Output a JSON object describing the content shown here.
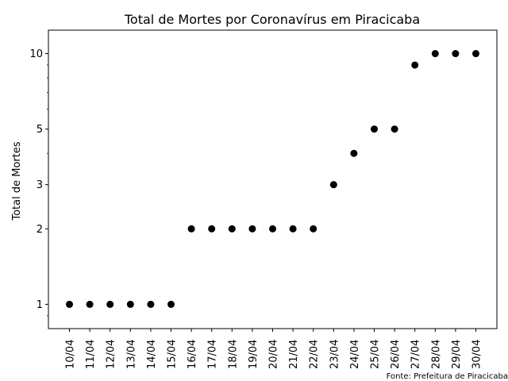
{
  "chart_data": {
    "type": "scatter",
    "title": "Total de Mortes por Coronavírus em Piracicaba",
    "xlabel": "",
    "ylabel": "Total de Mortes",
    "y_scale": "log",
    "ylim": [
      0.8,
      12.4
    ],
    "y_major_ticks": [
      1,
      2,
      3,
      5,
      10
    ],
    "y_tick_labels": [
      "1",
      "2",
      "3",
      "5",
      "10"
    ],
    "grid": false,
    "legend": "none",
    "marker_color": "#000000",
    "categories": [
      "10/04",
      "11/04",
      "12/04",
      "13/04",
      "14/04",
      "15/04",
      "16/04",
      "17/04",
      "18/04",
      "19/04",
      "20/04",
      "21/04",
      "22/04",
      "23/04",
      "24/04",
      "25/04",
      "26/04",
      "27/04",
      "28/04",
      "29/04",
      "30/04"
    ],
    "values": [
      1,
      1,
      1,
      1,
      1,
      1,
      2,
      2,
      2,
      2,
      2,
      2,
      2,
      3,
      4,
      5,
      5,
      9,
      10,
      10,
      10
    ]
  },
  "source_note": "Fonte: Prefeitura de Piracicaba"
}
